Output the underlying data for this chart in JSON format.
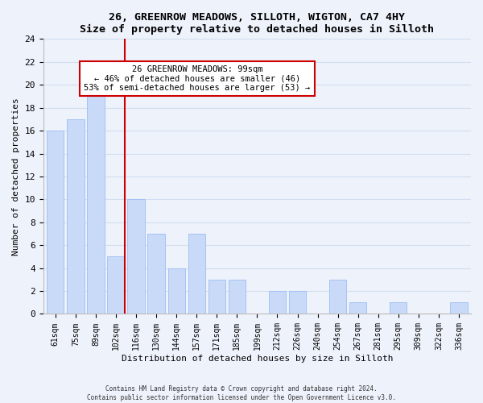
{
  "title": "26, GREENROW MEADOWS, SILLOTH, WIGTON, CA7 4HY",
  "subtitle": "Size of property relative to detached houses in Silloth",
  "xlabel": "Distribution of detached houses by size in Silloth",
  "ylabel": "Number of detached properties",
  "categories": [
    "61sqm",
    "75sqm",
    "89sqm",
    "102sqm",
    "116sqm",
    "130sqm",
    "144sqm",
    "157sqm",
    "171sqm",
    "185sqm",
    "199sqm",
    "212sqm",
    "226sqm",
    "240sqm",
    "254sqm",
    "267sqm",
    "281sqm",
    "295sqm",
    "309sqm",
    "322sqm",
    "336sqm"
  ],
  "values": [
    16,
    17,
    19,
    5,
    10,
    7,
    4,
    7,
    3,
    3,
    0,
    2,
    2,
    0,
    3,
    1,
    0,
    1,
    0,
    0,
    1
  ],
  "bar_color": "#c9daf8",
  "bar_edge_color": "#a4c2f4",
  "highlight_bar_index": 3,
  "highlight_line_color": "#cc0000",
  "annotation_title": "26 GREENROW MEADOWS: 99sqm",
  "annotation_line1": "← 46% of detached houses are smaller (46)",
  "annotation_line2": "53% of semi-detached houses are larger (53) →",
  "annotation_box_facecolor": "#ffffff",
  "annotation_box_edgecolor": "#cc0000",
  "ylim": [
    0,
    24
  ],
  "yticks": [
    0,
    2,
    4,
    6,
    8,
    10,
    12,
    14,
    16,
    18,
    20,
    22,
    24
  ],
  "footer1": "Contains HM Land Registry data © Crown copyright and database right 2024.",
  "footer2": "Contains public sector information licensed under the Open Government Licence v3.0.",
  "grid_color": "#d0dff0",
  "background_color": "#eef2fb",
  "title_fontsize": 9.5,
  "subtitle_fontsize": 8.5,
  "xlabel_fontsize": 8,
  "ylabel_fontsize": 8,
  "tick_fontsize": 7,
  "annotation_fontsize": 7.5,
  "footer_fontsize": 5.5
}
